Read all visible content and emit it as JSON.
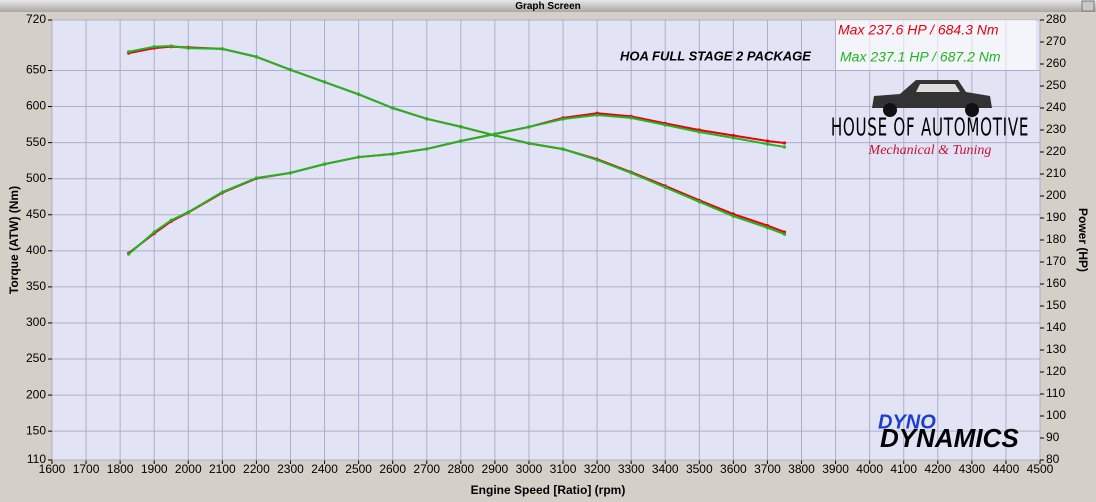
{
  "window_title": "Graph Screen",
  "chart_data": {
    "type": "line",
    "x_label": "Engine Speed [Ratio] (rpm)",
    "y_label": "Torque (ATW) (Nm)",
    "y2_label": "Power (HP)",
    "annotations": [
      {
        "text": "Max 237.6 HP  / 684.3 Nm",
        "color": "#e8000b"
      },
      {
        "text": "Max 237.1 HP  / 687.2 Nm",
        "color": "#22b422"
      },
      {
        "text": "HOA FULL STAGE 2 PACKAGE",
        "color": "#000000"
      }
    ],
    "logos": {
      "brand": "HOUSE OF AUTOMOTIVE",
      "brand_sub": "Mechanical & Tuning",
      "dyno_1": "DYNO",
      "dyno_2": "DYNAMICS"
    },
    "x": [
      1825,
      1900,
      1950,
      2000,
      2100,
      2200,
      2300,
      2400,
      2500,
      2600,
      2700,
      2800,
      2900,
      3000,
      3100,
      3200,
      3300,
      3400,
      3500,
      3600,
      3700,
      3750
    ],
    "series": [
      {
        "color": "#e8000b",
        "axis": "y",
        "values": [
          674,
          681,
          683,
          682,
          680,
          669,
          651,
          634,
          617,
          598,
          583,
          572,
          560,
          549,
          541,
          527,
          509,
          490,
          470,
          451,
          435,
          426
        ]
      },
      {
        "color": "#22b422",
        "axis": "y",
        "values": [
          676,
          683,
          684,
          681,
          680,
          669,
          651,
          634,
          617,
          598,
          583,
          572,
          560,
          549,
          541,
          526,
          508,
          488,
          468,
          448,
          432,
          423
        ]
      },
      {
        "color": "#e8000b",
        "axis": "y2",
        "values": [
          174,
          183,
          188.5,
          192.5,
          201.5,
          208,
          210.5,
          214.5,
          217.7,
          219.1,
          221.4,
          225,
          228.2,
          231.4,
          235.5,
          237.6,
          236.2,
          233,
          230,
          227.5,
          225,
          224.1
        ]
      },
      {
        "color": "#22b422",
        "axis": "y2",
        "values": [
          173.6,
          183.6,
          189,
          192.7,
          201.8,
          208.2,
          210.5,
          214.5,
          217.7,
          219.1,
          221.4,
          225,
          228.2,
          231.4,
          235,
          236.8,
          235.5,
          232.3,
          229.1,
          226.4,
          223.6,
          222.3
        ]
      }
    ],
    "xlim": [
      1600,
      4500
    ],
    "xticks": [
      1600,
      1700,
      1800,
      1900,
      2000,
      2100,
      2200,
      2300,
      2400,
      2500,
      2600,
      2700,
      2800,
      2900,
      3000,
      3100,
      3200,
      3300,
      3400,
      3500,
      3600,
      3700,
      3800,
      3900,
      4000,
      4100,
      4200,
      4300,
      4400,
      4500
    ],
    "ylim": [
      110,
      720
    ],
    "yticks": [
      110,
      150,
      200,
      250,
      300,
      350,
      400,
      450,
      500,
      550,
      600,
      650,
      720
    ],
    "y2lim": [
      80,
      280
    ],
    "y2ticks": [
      80,
      90,
      100,
      110,
      120,
      130,
      140,
      150,
      160,
      170,
      180,
      190,
      200,
      210,
      220,
      230,
      240,
      250,
      260,
      270,
      280
    ],
    "grid": true
  }
}
